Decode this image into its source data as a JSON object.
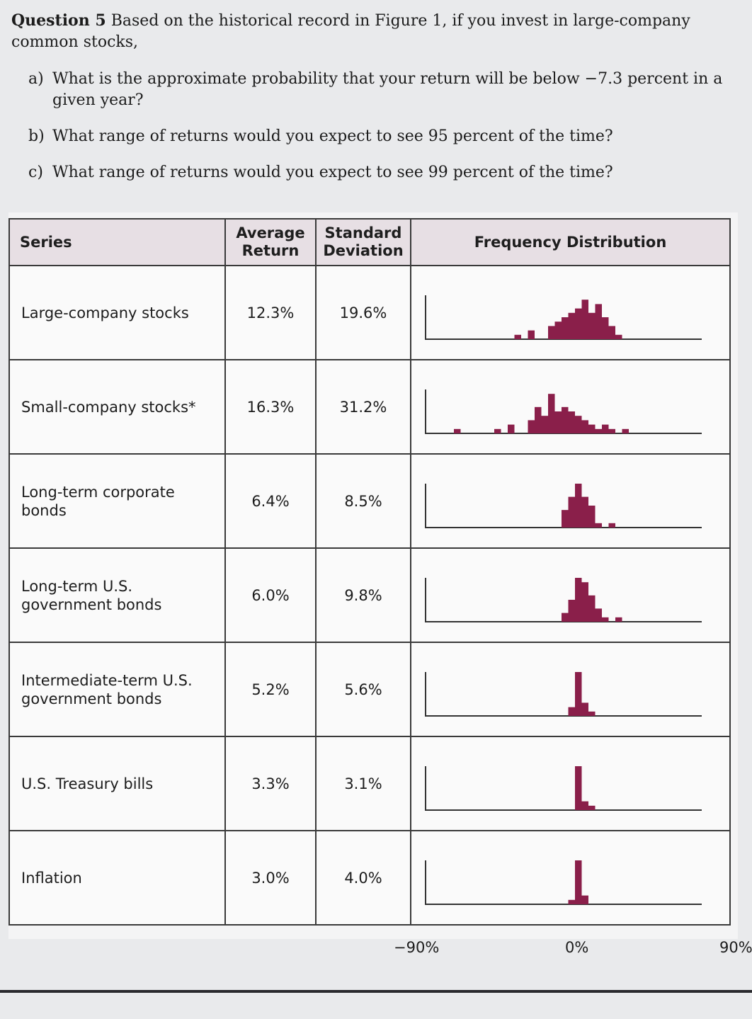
{
  "question": {
    "number_label": "Question 5",
    "intro": "Based on the historical record in Figure 1, if you invest in large-company common stocks,",
    "parts": [
      {
        "letter": "a)",
        "text": "What is the approximate probability that your return will be below −7.3 percent in a given year?"
      },
      {
        "letter": "b)",
        "text": "What range of returns would you expect to see 95 percent of the time?"
      },
      {
        "letter": "c)",
        "text": "What range of returns would you expect to see 99 percent of the time?"
      }
    ]
  },
  "table": {
    "headers": {
      "series": "Series",
      "average_return": "Average Return",
      "std_dev": "Standard Deviation",
      "distribution": "Frequency Distribution"
    },
    "rows": [
      {
        "series": "Large-company stocks",
        "average_return": "12.3%",
        "std_dev": "19.6%"
      },
      {
        "series": "Small-company stocks*",
        "average_return": "16.3%",
        "std_dev": "31.2%"
      },
      {
        "series": "Long-term corporate bonds",
        "average_return": "6.4%",
        "std_dev": "8.5%"
      },
      {
        "series": "Long-term U.S. government bonds",
        "average_return": "6.0%",
        "std_dev": "9.8%"
      },
      {
        "series": "Intermediate-term U.S. government bonds",
        "average_return": "5.2%",
        "std_dev": "5.6%"
      },
      {
        "series": "U.S. Treasury bills",
        "average_return": "3.3%",
        "std_dev": "3.1%"
      },
      {
        "series": "Inflation",
        "average_return": "3.0%",
        "std_dev": "4.0%"
      }
    ],
    "axis_ticks": [
      "−90%",
      "0%",
      "90%"
    ]
  },
  "colors": {
    "bar": "#8a1f4a",
    "header_bg": "#e7dfe4"
  }
}
